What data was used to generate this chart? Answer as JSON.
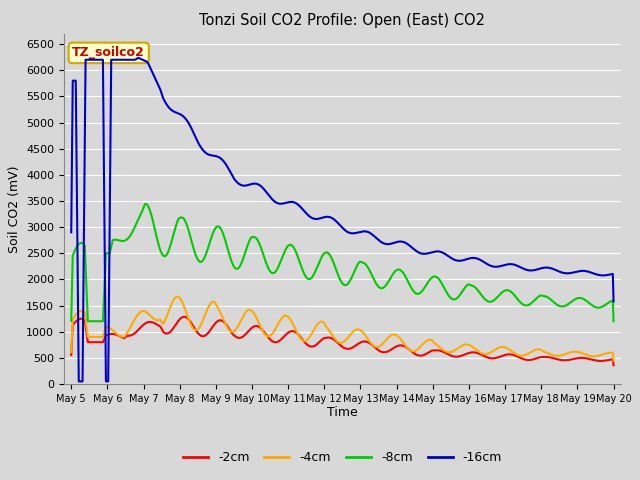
{
  "title": "Tonzi Soil CO2 Profile: Open (East) CO2",
  "xlabel": "Time",
  "ylabel": "Soil CO2 (mV)",
  "ylim": [
    0,
    6700
  ],
  "yticks": [
    0,
    500,
    1000,
    1500,
    2000,
    2500,
    3000,
    3500,
    4000,
    4500,
    5000,
    5500,
    6000,
    6500
  ],
  "bg_color": "#d8d8d8",
  "plot_bg_color": "#d8d8d8",
  "legend_label": "TZ_soilco2",
  "legend_bg": "#ffffcc",
  "legend_border": "#ccaa00",
  "series_colors": [
    "#ff0000",
    "#ffaa00",
    "#00cc00",
    "#0000cc"
  ],
  "series_labels": [
    "-2cm",
    "-4cm",
    "-8cm",
    "-16cm"
  ],
  "grid_color": "#ffffff",
  "n_points": 720
}
